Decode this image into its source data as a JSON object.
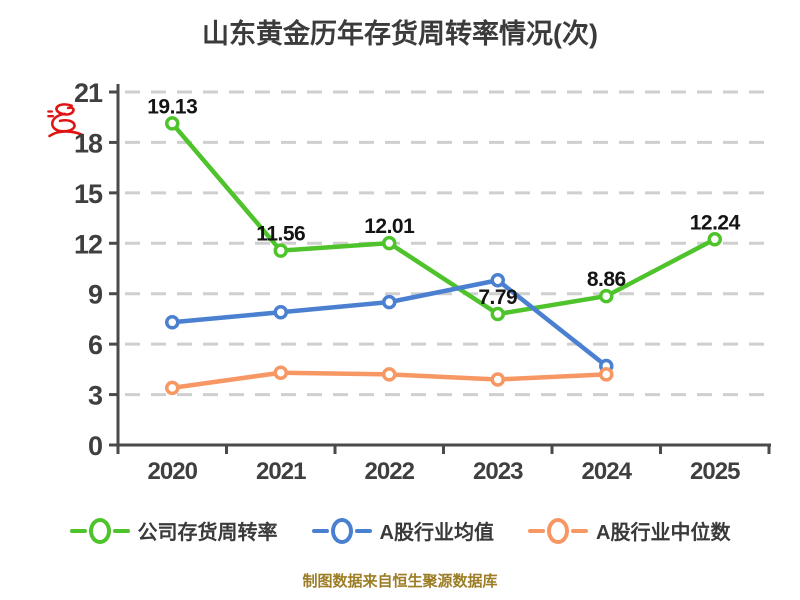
{
  "title": "山东黄金历年存货周转率情况(次)",
  "footer_note": "制图数据来自恒生聚源数据库",
  "icons": {
    "red_mark": "red-scribble-stamp"
  },
  "colors": {
    "background": "#ffffff",
    "title": "#3b3b3b",
    "axis": "#4a4a4a",
    "grid": "#cfcfcf",
    "tick_label": "#3f3f3f",
    "data_label": "#141414",
    "legend_label": "#3a3a3a",
    "footer": "#9c7d26",
    "red_mark": "#e01212"
  },
  "chart_data": {
    "type": "line",
    "title": "山东黄金历年存货周转率情况(次)",
    "categories": [
      "2020",
      "2021",
      "2022",
      "2023",
      "2024",
      "2025"
    ],
    "xlabel": "",
    "ylabel": "",
    "ylim": [
      0,
      21
    ],
    "yticks": [
      0,
      3,
      6,
      9,
      12,
      15,
      18,
      21
    ],
    "grid": true,
    "grid_style": "dashed",
    "legend_position": "bottom",
    "series": [
      {
        "name": "公司存货周转率",
        "color": "#4fc32b",
        "values": [
          19.13,
          11.56,
          12.01,
          7.79,
          8.86,
          12.24
        ],
        "show_labels": true,
        "values_estimated": false
      },
      {
        "name": "A股行业均值",
        "color": "#4b80d1",
        "values": [
          7.3,
          7.9,
          8.5,
          9.8,
          4.7,
          null
        ],
        "show_labels": false,
        "values_estimated": true
      },
      {
        "name": "A股行业中位数",
        "color": "#f79763",
        "values": [
          3.4,
          4.3,
          4.2,
          3.9,
          4.2,
          null
        ],
        "show_labels": false,
        "values_estimated": true
      }
    ]
  }
}
